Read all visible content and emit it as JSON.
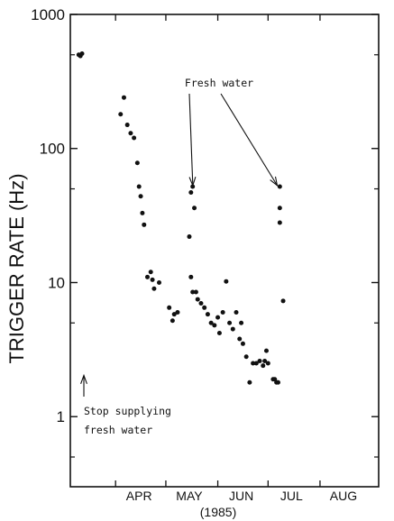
{
  "chart_data": {
    "type": "scatter",
    "ylabel": "TRIGGER RATE (Hz)",
    "xlabel_year": "(1985)",
    "y_scale": "log",
    "ylim": [
      0.3,
      1000
    ],
    "y_ticks": [
      {
        "value": 1,
        "label": "1"
      },
      {
        "value": 10,
        "label": "10"
      },
      {
        "value": 100,
        "label": "100"
      },
      {
        "value": 1000,
        "label": "1000"
      }
    ],
    "xlim": [
      "1985-03-05",
      "1985-09-05"
    ],
    "x_month_labels": [
      {
        "date": "1985-04-15",
        "label": "APR"
      },
      {
        "date": "1985-05-15",
        "label": "MAY"
      },
      {
        "date": "1985-06-15",
        "label": "JUN"
      },
      {
        "date": "1985-07-15",
        "label": "JUL"
      },
      {
        "date": "1985-08-15",
        "label": "AUG"
      }
    ],
    "x_ticks": [
      "1985-04-01",
      "1985-05-01",
      "1985-06-01",
      "1985-07-01",
      "1985-08-01"
    ],
    "points": [
      {
        "x": "1985-03-10",
        "y": 500
      },
      {
        "x": "1985-03-11",
        "y": 490
      },
      {
        "x": "1985-03-12",
        "y": 510
      },
      {
        "x": "1985-04-04",
        "y": 180
      },
      {
        "x": "1985-04-06",
        "y": 240
      },
      {
        "x": "1985-04-08",
        "y": 150
      },
      {
        "x": "1985-04-10",
        "y": 130
      },
      {
        "x": "1985-04-12",
        "y": 120
      },
      {
        "x": "1985-04-14",
        "y": 78
      },
      {
        "x": "1985-04-15",
        "y": 52
      },
      {
        "x": "1985-04-16",
        "y": 44
      },
      {
        "x": "1985-04-17",
        "y": 33
      },
      {
        "x": "1985-04-18",
        "y": 27
      },
      {
        "x": "1985-04-20",
        "y": 11
      },
      {
        "x": "1985-04-22",
        "y": 12
      },
      {
        "x": "1985-04-23",
        "y": 10.5
      },
      {
        "x": "1985-04-24",
        "y": 9
      },
      {
        "x": "1985-04-27",
        "y": 10
      },
      {
        "x": "1985-05-03",
        "y": 6.5
      },
      {
        "x": "1985-05-05",
        "y": 5.2
      },
      {
        "x": "1985-05-06",
        "y": 5.8
      },
      {
        "x": "1985-05-08",
        "y": 6
      },
      {
        "x": "1985-05-15",
        "y": 22
      },
      {
        "x": "1985-05-16",
        "y": 47
      },
      {
        "x": "1985-05-17",
        "y": 52
      },
      {
        "x": "1985-05-18",
        "y": 36
      },
      {
        "x": "1985-05-16",
        "y": 11
      },
      {
        "x": "1985-05-17",
        "y": 8.5
      },
      {
        "x": "1985-05-19",
        "y": 8.5
      },
      {
        "x": "1985-05-20",
        "y": 7.5
      },
      {
        "x": "1985-05-22",
        "y": 7
      },
      {
        "x": "1985-05-24",
        "y": 6.5
      },
      {
        "x": "1985-05-26",
        "y": 5.8
      },
      {
        "x": "1985-05-28",
        "y": 5
      },
      {
        "x": "1985-05-30",
        "y": 4.8
      },
      {
        "x": "1985-06-01",
        "y": 5.5
      },
      {
        "x": "1985-06-02",
        "y": 4.2
      },
      {
        "x": "1985-06-04",
        "y": 6
      },
      {
        "x": "1985-06-06",
        "y": 10.2
      },
      {
        "x": "1985-06-08",
        "y": 5
      },
      {
        "x": "1985-06-10",
        "y": 4.5
      },
      {
        "x": "1985-06-12",
        "y": 6
      },
      {
        "x": "1985-06-14",
        "y": 3.8
      },
      {
        "x": "1985-06-15",
        "y": 5
      },
      {
        "x": "1985-06-16",
        "y": 3.5
      },
      {
        "x": "1985-06-18",
        "y": 2.8
      },
      {
        "x": "1985-06-20",
        "y": 1.8
      },
      {
        "x": "1985-06-22",
        "y": 2.5
      },
      {
        "x": "1985-06-24",
        "y": 2.5
      },
      {
        "x": "1985-06-26",
        "y": 2.6
      },
      {
        "x": "1985-06-28",
        "y": 2.4
      },
      {
        "x": "1985-06-29",
        "y": 2.6
      },
      {
        "x": "1985-06-30",
        "y": 3.1
      },
      {
        "x": "1985-07-01",
        "y": 2.5
      },
      {
        "x": "1985-07-04",
        "y": 1.9
      },
      {
        "x": "1985-07-05",
        "y": 1.9
      },
      {
        "x": "1985-07-06",
        "y": 1.8
      },
      {
        "x": "1985-07-07",
        "y": 1.8
      },
      {
        "x": "1985-07-08",
        "y": 52
      },
      {
        "x": "1985-07-08",
        "y": 36
      },
      {
        "x": "1985-07-08",
        "y": 28
      },
      {
        "x": "1985-07-10",
        "y": 7.3
      }
    ],
    "annotations": [
      {
        "text": "Fresh water",
        "points_to": [
          {
            "x": "1985-05-16",
            "y": 60
          },
          {
            "x": "1985-07-07",
            "y": 60
          }
        ]
      },
      {
        "text_lines": [
          "Stop supplying",
          "fresh water"
        ],
        "points_to": [
          {
            "x": "1985-03-12",
            "y": 2
          }
        ]
      }
    ]
  }
}
